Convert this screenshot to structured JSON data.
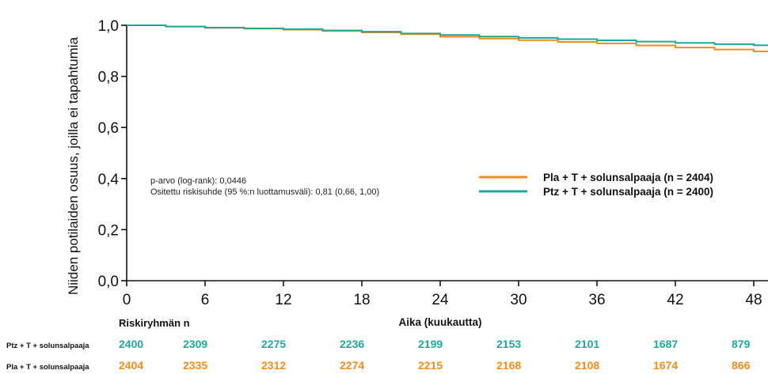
{
  "chart_data": {
    "type": "line",
    "ylabel": "Niiden potilaiden osuus, joilla ei tapahtumia",
    "xlabel": "Aika (kuukautta)",
    "x_ticks": [
      "0",
      "6",
      "12",
      "18",
      "24",
      "30",
      "36",
      "42",
      "48"
    ],
    "y_ticks": [
      "0,0",
      "0,2",
      "0,4",
      "0,6",
      "0,8",
      "1,0"
    ],
    "xlim": [
      0,
      48
    ],
    "ylim": [
      0,
      1.0
    ],
    "series": [
      {
        "name": "Pla + T + solunsalpaaja (n = 2404)",
        "color": "#f28c1c",
        "x": [
          0,
          3,
          6,
          9,
          12,
          15,
          18,
          21,
          24,
          27,
          30,
          33,
          36,
          39,
          42,
          45,
          48
        ],
        "y": [
          1.0,
          0.995,
          0.99,
          0.987,
          0.983,
          0.978,
          0.972,
          0.965,
          0.955,
          0.948,
          0.942,
          0.935,
          0.929,
          0.921,
          0.913,
          0.905,
          0.898
        ]
      },
      {
        "name": "Ptz + T + solunsalpaaja (n = 2400)",
        "color": "#1fa89a",
        "x": [
          0,
          3,
          6,
          9,
          12,
          15,
          18,
          21,
          24,
          27,
          30,
          33,
          36,
          39,
          42,
          45,
          48
        ],
        "y": [
          1.0,
          0.995,
          0.991,
          0.988,
          0.985,
          0.98,
          0.975,
          0.968,
          0.962,
          0.956,
          0.951,
          0.946,
          0.941,
          0.936,
          0.931,
          0.926,
          0.922
        ]
      }
    ],
    "annotations": [
      "p-arvo (log-rank): 0,0446",
      "Ositettu riskisuhde (95 %:n luottamusväli): 0,81 (0,66, 1,00)"
    ],
    "legend_position": "right",
    "grid": false,
    "risk_table": {
      "title": "Riskiryhmän n",
      "rows": [
        {
          "label": "Ptz + T + solunsalpaaja",
          "color": "#1fa89a",
          "values": [
            "2400",
            "2309",
            "2275",
            "2236",
            "2199",
            "2153",
            "2101",
            "1687",
            "879"
          ]
        },
        {
          "label": "Pla + T + solunsalpaaja",
          "color": "#f28c1c",
          "values": [
            "2404",
            "2335",
            "2312",
            "2274",
            "2215",
            "2168",
            "2108",
            "1674",
            "866"
          ]
        }
      ]
    }
  }
}
